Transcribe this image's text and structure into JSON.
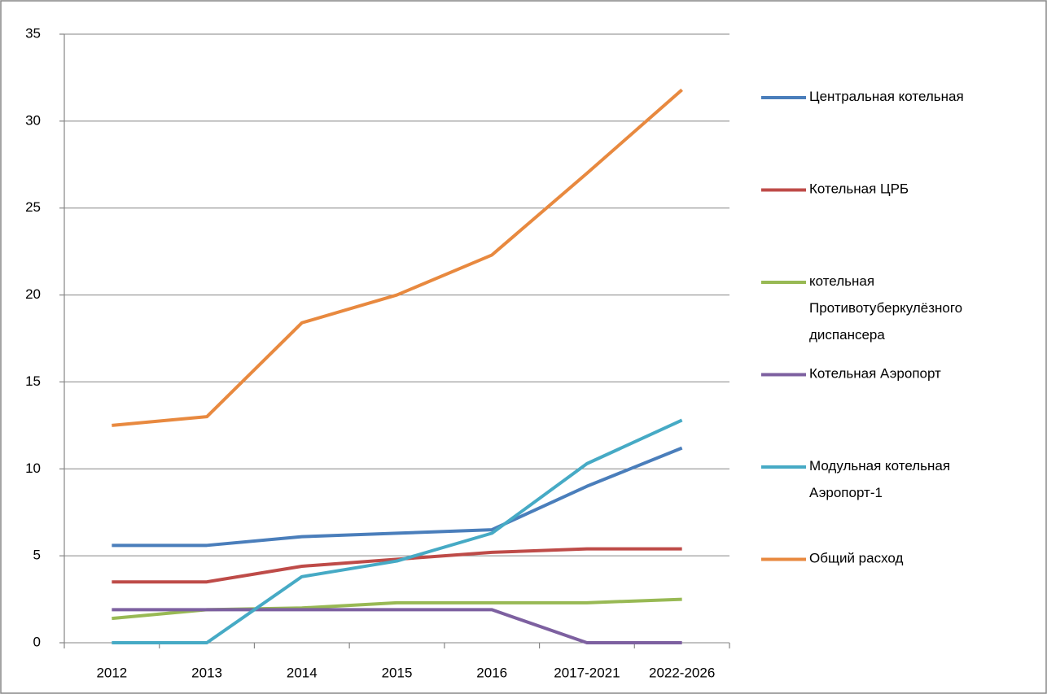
{
  "chart_data": {
    "type": "line",
    "categories": [
      "2012",
      "2013",
      "2014",
      "2015",
      "2016",
      "2017-2021",
      "2022-2026"
    ],
    "series": [
      {
        "name": "Центральная котельная",
        "color": "#4a7ebb",
        "values": [
          5.6,
          5.6,
          6.1,
          6.3,
          6.5,
          9.0,
          11.2
        ]
      },
      {
        "name": "Котельная ЦРБ",
        "color": "#be4b48",
        "values": [
          3.5,
          3.5,
          4.4,
          4.8,
          5.2,
          5.4,
          5.4
        ]
      },
      {
        "name": "котельная Противотуберкулёзного диспансера",
        "color": "#98b954",
        "values": [
          1.4,
          1.9,
          2.0,
          2.3,
          2.3,
          2.3,
          2.5
        ]
      },
      {
        "name": "Котельная Аэропорт",
        "color": "#7d60a0",
        "values": [
          1.9,
          1.9,
          1.9,
          1.9,
          1.9,
          0,
          0
        ]
      },
      {
        "name": "Модульная котельная Аэропорт-1",
        "color": "#46aac5",
        "values": [
          0,
          0,
          3.8,
          4.7,
          6.3,
          10.3,
          12.8
        ]
      },
      {
        "name": "Общий расход",
        "color": "#e8893f",
        "values": [
          12.5,
          13.0,
          18.4,
          20.0,
          22.3,
          27.0,
          31.8
        ]
      }
    ],
    "ylim": [
      0,
      35
    ],
    "yticks": [
      0,
      5,
      10,
      15,
      20,
      25,
      30,
      35
    ],
    "grid": true,
    "legend": "right"
  }
}
